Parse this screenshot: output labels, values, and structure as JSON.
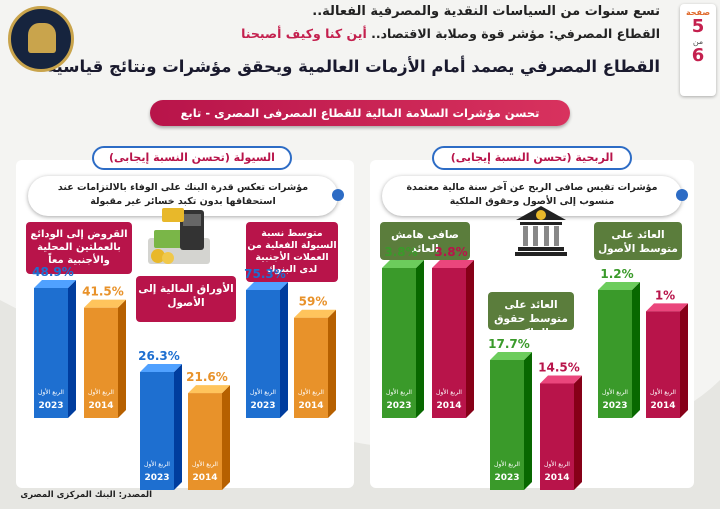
{
  "header": {
    "line1": "تسع سنوات من السياسات النقدية والمصرفية الفعالة..",
    "line2_a": "القطاع المصرفي: مؤشر قوة وصلابة الاقتصاد..",
    "line2_b": "أين كنا وكيف أصبحنا",
    "line3": "القطاع المصرفي يصمد أمام الأزمات العالمية ويحقق مؤشرات ونتائج قياسية"
  },
  "page_badge": {
    "label": "صفحة",
    "current": "5",
    "of": "من",
    "total": "6"
  },
  "banner": "تحسن مؤشرات السلامة المالية للقطاع المصرفى المصرى - تابع",
  "right_section": {
    "pill": "الربحية (تحسن النسبة إيجابى)",
    "desc": "مؤشرات تقيس صافى الربح عن آخر سنة مالية معتمدة منسوب إلى الأصول وحقوق الملكية"
  },
  "left_section": {
    "pill": "السيولة (تحسن النسبة إيجابى)",
    "desc": "مؤشرات تعكس قدرة البنك على الوفاء بالالتزامات عند استحقاقها بدون تكبد خسائر غير مقبولة"
  },
  "source": "المصدر: البنك المركزى المصرى",
  "colors": {
    "red": "#b8144a",
    "green": "#3a9a2a",
    "blue": "#1e6fd0",
    "orange": "#e8922a"
  },
  "chart_data": [
    {
      "type": "bar",
      "title": "العائد على متوسط الأصول",
      "categories": [
        "2023",
        "2014"
      ],
      "period_label": "الربع الأول",
      "values": [
        1.2,
        1
      ],
      "value_labels": [
        "1.2%",
        "1%"
      ],
      "unit": "%"
    },
    {
      "type": "bar",
      "title": "العائد على متوسط حقوق الملكية",
      "categories": [
        "2023",
        "2014"
      ],
      "period_label": "الربع الأول",
      "values": [
        17.7,
        14.5
      ],
      "value_labels": [
        "17.7%",
        "14.5%"
      ],
      "unit": "%"
    },
    {
      "type": "bar",
      "title": "صافى هامش العائد",
      "categories": [
        "2023",
        "2014"
      ],
      "period_label": "الربع الأول",
      "values": [
        3.8,
        3.8
      ],
      "value_labels": [
        "3.8%",
        "3.8%"
      ],
      "unit": "%"
    },
    {
      "type": "bar",
      "title": "متوسط نسبة السيولة الفعلية من العملات الأجنبية لدى البنوك",
      "categories": [
        "2023",
        "2014"
      ],
      "period_label": "الربع الأول",
      "values": [
        75.3,
        59
      ],
      "value_labels": [
        "75.3%",
        "59%"
      ],
      "unit": "%"
    },
    {
      "type": "bar",
      "title": "الأوراق المالية إلى الأصول",
      "categories": [
        "2023",
        "2014"
      ],
      "period_label": "الربع الأول",
      "values": [
        26.3,
        21.6
      ],
      "value_labels": [
        "26.3%",
        "21.6%"
      ],
      "unit": "%"
    },
    {
      "type": "bar",
      "title": "القروض إلى الودائع بالعملتين المحلية والأجنبية معاً",
      "categories": [
        "2023",
        "2014"
      ],
      "period_label": "الربع الأول",
      "values": [
        48.9,
        41.5
      ],
      "value_labels": [
        "48.9%",
        "41.5%"
      ],
      "unit": "%"
    }
  ]
}
